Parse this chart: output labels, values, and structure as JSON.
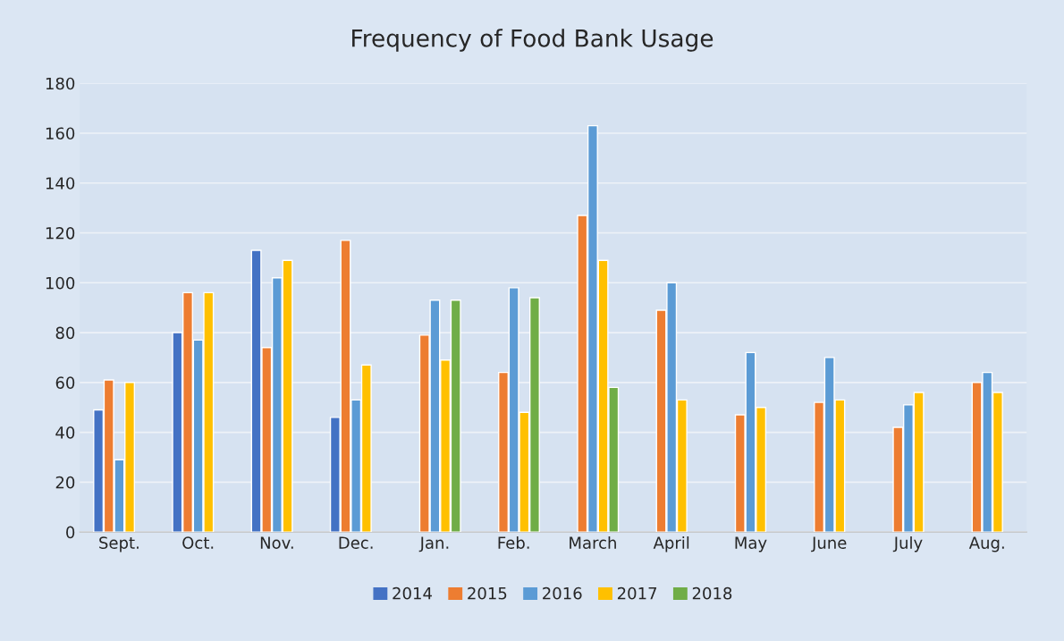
{
  "chart_data": {
    "type": "bar",
    "title": "Frequency of Food Bank Usage",
    "categories": [
      "Sept.",
      "Oct.",
      "Nov.",
      "Dec.",
      "Jan.",
      "Feb.",
      "March",
      "April",
      "May",
      "June",
      "July",
      "Aug."
    ],
    "series": [
      {
        "name": "2014",
        "color": "#4472c4",
        "values": [
          49,
          80,
          113,
          46,
          null,
          null,
          null,
          null,
          null,
          null,
          null,
          null
        ]
      },
      {
        "name": "2015",
        "color": "#ed7d31",
        "values": [
          61,
          96,
          74,
          117,
          79,
          64,
          127,
          89,
          47,
          52,
          42,
          60
        ]
      },
      {
        "name": "2016",
        "color": "#5b9bd5",
        "values": [
          29,
          77,
          102,
          53,
          93,
          98,
          163,
          100,
          72,
          70,
          51,
          64
        ]
      },
      {
        "name": "2017",
        "color": "#ffc000",
        "values": [
          60,
          96,
          109,
          67,
          69,
          48,
          109,
          53,
          50,
          53,
          56,
          56
        ]
      },
      {
        "name": "2018",
        "color": "#70ad47",
        "values": [
          null,
          null,
          null,
          null,
          93,
          94,
          58,
          null,
          null,
          null,
          null,
          null
        ]
      }
    ],
    "ylim": [
      0,
      180
    ],
    "yticks": [
      0,
      20,
      40,
      60,
      80,
      100,
      120,
      140,
      160,
      180
    ],
    "grid": "y",
    "legend": "bottom"
  }
}
